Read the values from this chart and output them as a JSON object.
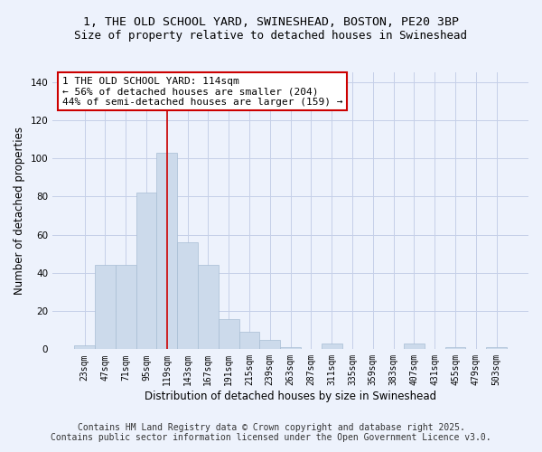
{
  "title_line1": "1, THE OLD SCHOOL YARD, SWINESHEAD, BOSTON, PE20 3BP",
  "title_line2": "Size of property relative to detached houses in Swineshead",
  "xlabel": "Distribution of detached houses by size in Swineshead",
  "ylabel": "Number of detached properties",
  "bar_labels": [
    "23sqm",
    "47sqm",
    "71sqm",
    "95sqm",
    "119sqm",
    "143sqm",
    "167sqm",
    "191sqm",
    "215sqm",
    "239sqm",
    "263sqm",
    "287sqm",
    "311sqm",
    "335sqm",
    "359sqm",
    "383sqm",
    "407sqm",
    "431sqm",
    "455sqm",
    "479sqm",
    "503sqm"
  ],
  "bar_values": [
    2,
    44,
    44,
    82,
    103,
    56,
    44,
    16,
    9,
    5,
    1,
    0,
    3,
    0,
    0,
    0,
    3,
    0,
    1,
    0,
    1
  ],
  "bar_color": "#ccdaeb",
  "bar_edgecolor": "#a8bdd4",
  "bar_width": 1.0,
  "ylim": [
    0,
    145
  ],
  "yticks": [
    0,
    20,
    40,
    60,
    80,
    100,
    120,
    140
  ],
  "property_bin_index": 4,
  "annotation_line1": "1 THE OLD SCHOOL YARD: 114sqm",
  "annotation_line2": "← 56% of detached houses are smaller (204)",
  "annotation_line3": "44% of semi-detached houses are larger (159) →",
  "annotation_box_color": "#ffffff",
  "annotation_border_color": "#cc0000",
  "red_line_color": "#cc0000",
  "footer_line1": "Contains HM Land Registry data © Crown copyright and database right 2025.",
  "footer_line2": "Contains public sector information licensed under the Open Government Licence v3.0.",
  "background_color": "#edf2fc",
  "grid_color": "#c5cfe8",
  "title_fontsize": 9.5,
  "subtitle_fontsize": 9,
  "axis_label_fontsize": 8.5,
  "tick_fontsize": 7,
  "annotation_fontsize": 8,
  "footer_fontsize": 7
}
